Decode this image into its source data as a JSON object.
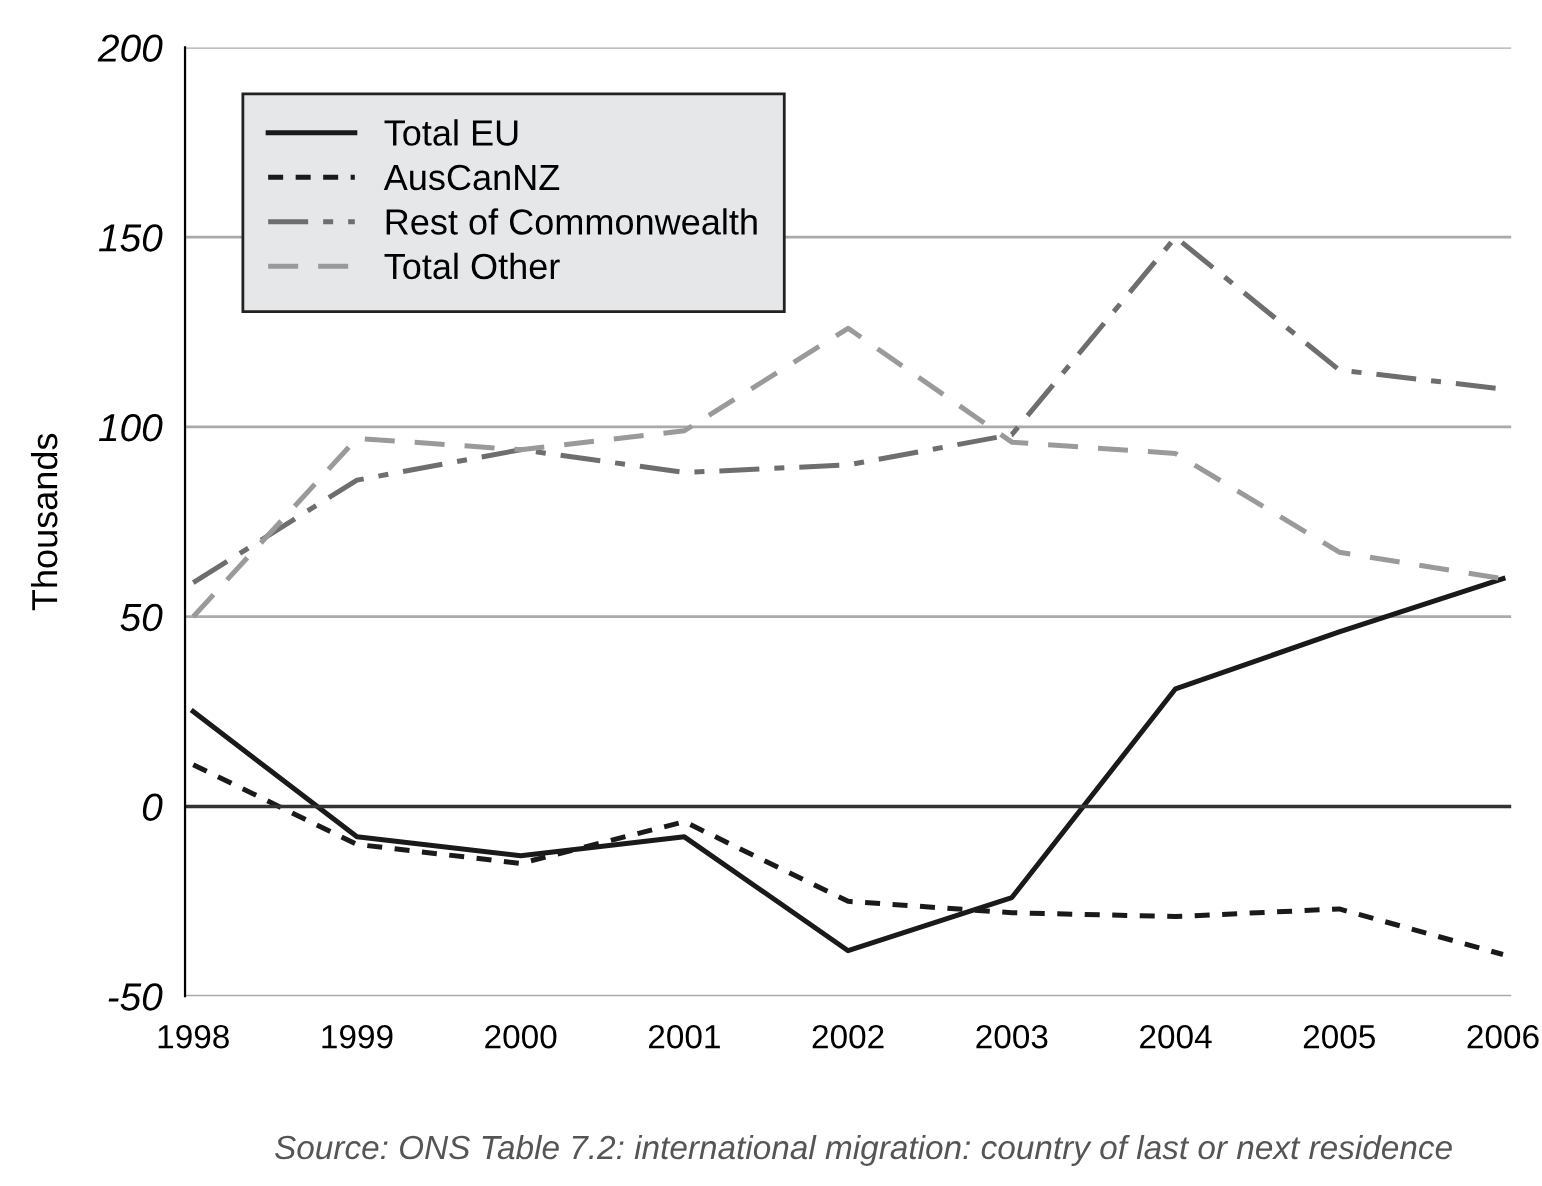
{
  "chart_data": {
    "type": "line",
    "ylabel": "Thousands",
    "categories": [
      "1998",
      "1999",
      "2000",
      "2001",
      "2002",
      "2003",
      "2004",
      "2005",
      "2006"
    ],
    "series": [
      {
        "name": "Total EU",
        "color": "#1a1a1a",
        "line_style": "solid",
        "values": [
          25,
          -8,
          -13,
          -8,
          -38,
          -24,
          31,
          46,
          60
        ]
      },
      {
        "name": "AusCanNZ",
        "color": "#1a1a1a",
        "line_style": "dotted",
        "values": [
          11,
          -10,
          -15,
          -4,
          -25,
          -28,
          -29,
          -27,
          -39
        ]
      },
      {
        "name": "Rest of Commonwealth",
        "color": "#6e6e6e",
        "line_style": "dashdot",
        "values": [
          59,
          86,
          94,
          88,
          90,
          98,
          150,
          115,
          110
        ]
      },
      {
        "name": "Total Other",
        "color": "#9a9a9a",
        "line_style": "dashed",
        "values": [
          50,
          97,
          94,
          99,
          126,
          96,
          93,
          67,
          60
        ]
      }
    ],
    "ylim": [
      -50,
      200
    ],
    "yticks": [
      -50,
      0,
      50,
      100,
      150,
      200
    ],
    "grid": "y",
    "legend": "top left",
    "ref_lines": [
      {
        "axis": "y",
        "value": 0,
        "color": "#333333",
        "line_style": "solid"
      }
    ],
    "annotations": [
      "Source: ONS Table 7.2: international migration: country of last or next residence"
    ]
  }
}
